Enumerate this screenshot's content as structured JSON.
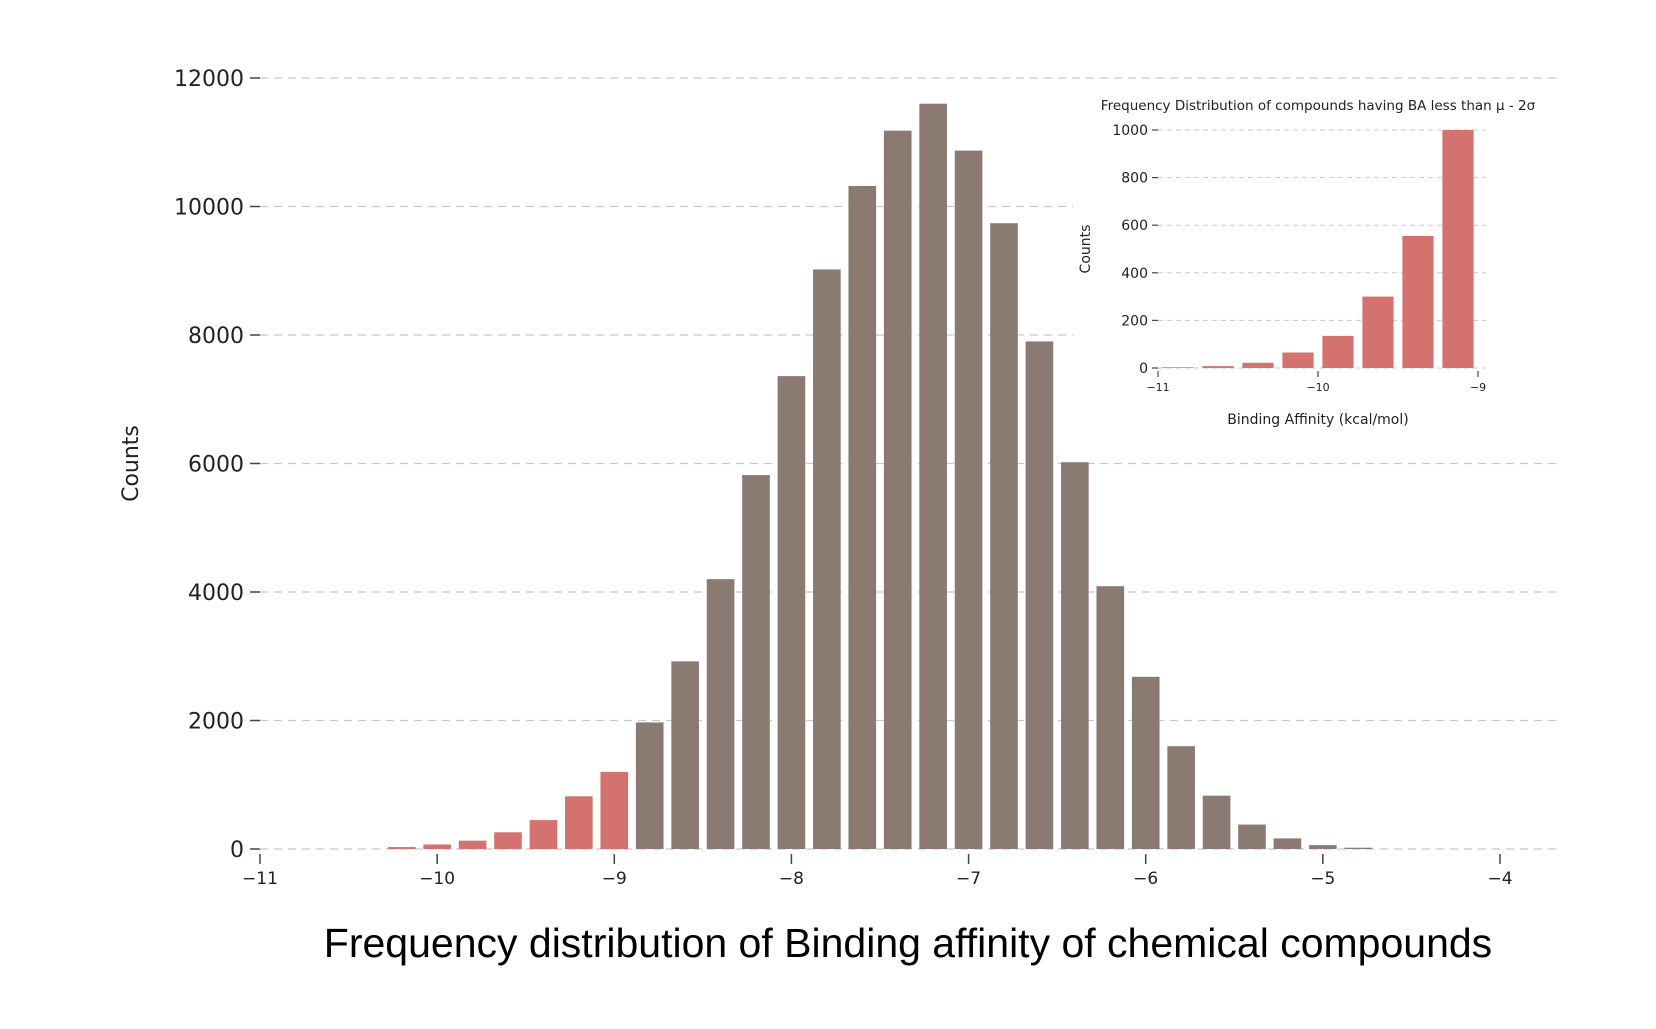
{
  "caption": "Frequency distribution of Binding affinity of chemical compounds",
  "colors": {
    "primary": "#8a7a72",
    "highlight": "#d3726e",
    "grid": "#c8c8c8"
  },
  "chart_data": [
    {
      "type": "bar",
      "title": "",
      "xlabel": "",
      "ylabel": "Counts",
      "xlim": [
        -11,
        -4
      ],
      "ylim": [
        0,
        12000
      ],
      "xticks": [
        -11,
        -10,
        -9,
        -8,
        -7,
        -6,
        -5,
        -4
      ],
      "xtick_labels": [
        "−11",
        "−10",
        "−9",
        "−8",
        "−7",
        "−6",
        "−5",
        "−4"
      ],
      "yticks": [
        0,
        2000,
        4000,
        6000,
        8000,
        10000,
        12000
      ],
      "ytick_labels": [
        "0",
        "2000",
        "4000",
        "6000",
        "8000",
        "10000",
        "12000"
      ],
      "grid": "horizontal dashed",
      "bin_width": 0.2,
      "x": [
        -10.2,
        -10.0,
        -9.8,
        -9.6,
        -9.4,
        -9.2,
        -9.0,
        -8.8,
        -8.6,
        -8.4,
        -8.2,
        -8.0,
        -7.8,
        -7.6,
        -7.4,
        -7.2,
        -7.0,
        -6.8,
        -6.6,
        -6.4,
        -6.2,
        -6.0,
        -5.8,
        -5.6,
        -5.4,
        -5.2,
        -5.0,
        -4.8
      ],
      "values": [
        30,
        70,
        130,
        260,
        450,
        820,
        1200,
        1970,
        2920,
        4200,
        5820,
        7360,
        9020,
        10320,
        11180,
        11600,
        10870,
        9740,
        7900,
        6020,
        4090,
        2680,
        1600,
        830,
        380,
        165,
        60,
        20
      ],
      "highlighted_up_to": -9.0
    },
    {
      "type": "bar",
      "title": "Frequency Distribution of compounds having BA less than μ - 2σ",
      "xlabel": "Binding Affinity (kcal/mol)",
      "ylabel": "Counts",
      "xlim": [
        -11,
        -9
      ],
      "ylim": [
        0,
        1000
      ],
      "xticks": [
        -11,
        -10,
        -9
      ],
      "xtick_labels": [
        "−11",
        "−10",
        "−9"
      ],
      "yticks": [
        0,
        200,
        400,
        600,
        800,
        1000
      ],
      "ytick_labels": [
        "0",
        "200",
        "400",
        "600",
        "800",
        "1000"
      ],
      "grid": "horizontal dashed",
      "bin_width": 0.25,
      "x": [
        -10.875,
        -10.625,
        -10.375,
        -10.125,
        -9.875,
        -9.625,
        -9.375,
        -9.125
      ],
      "values": [
        3,
        8,
        22,
        65,
        135,
        300,
        555,
        1000
      ]
    }
  ]
}
